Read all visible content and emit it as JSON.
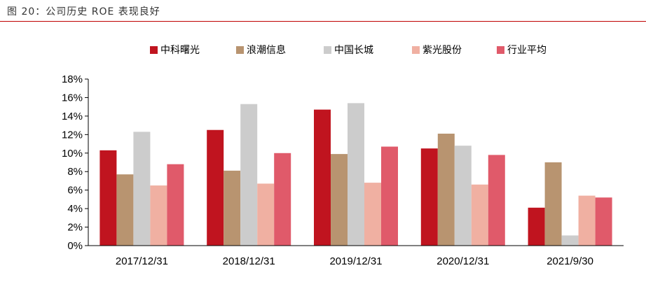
{
  "figure_title": "图 20：公司历史 ROE 表现良好",
  "chart_data": {
    "type": "bar",
    "title": "",
    "xlabel": "",
    "ylabel": "",
    "ylim": [
      0,
      18
    ],
    "yticks": [
      "0%",
      "2%",
      "4%",
      "6%",
      "8%",
      "10%",
      "12%",
      "14%",
      "16%",
      "18%"
    ],
    "categories": [
      "2017/12/31",
      "2018/12/31",
      "2019/12/31",
      "2020/12/31",
      "2021/9/30"
    ],
    "legend_position": "top",
    "series": [
      {
        "name": "中科曙光",
        "color": "#c0141f",
        "values": [
          10.3,
          12.5,
          14.7,
          10.5,
          4.1
        ]
      },
      {
        "name": "浪潮信息",
        "color": "#b89470",
        "values": [
          7.7,
          8.1,
          9.9,
          12.1,
          9.0
        ]
      },
      {
        "name": "中国长城",
        "color": "#cccccc",
        "values": [
          12.3,
          15.3,
          15.4,
          10.8,
          1.1
        ]
      },
      {
        "name": "紫光股份",
        "color": "#f0b0a2",
        "values": [
          6.5,
          6.7,
          6.8,
          6.6,
          5.4
        ]
      },
      {
        "name": "行业平均",
        "color": "#e05a6a",
        "values": [
          8.8,
          10.0,
          10.7,
          9.8,
          5.2
        ]
      }
    ]
  }
}
